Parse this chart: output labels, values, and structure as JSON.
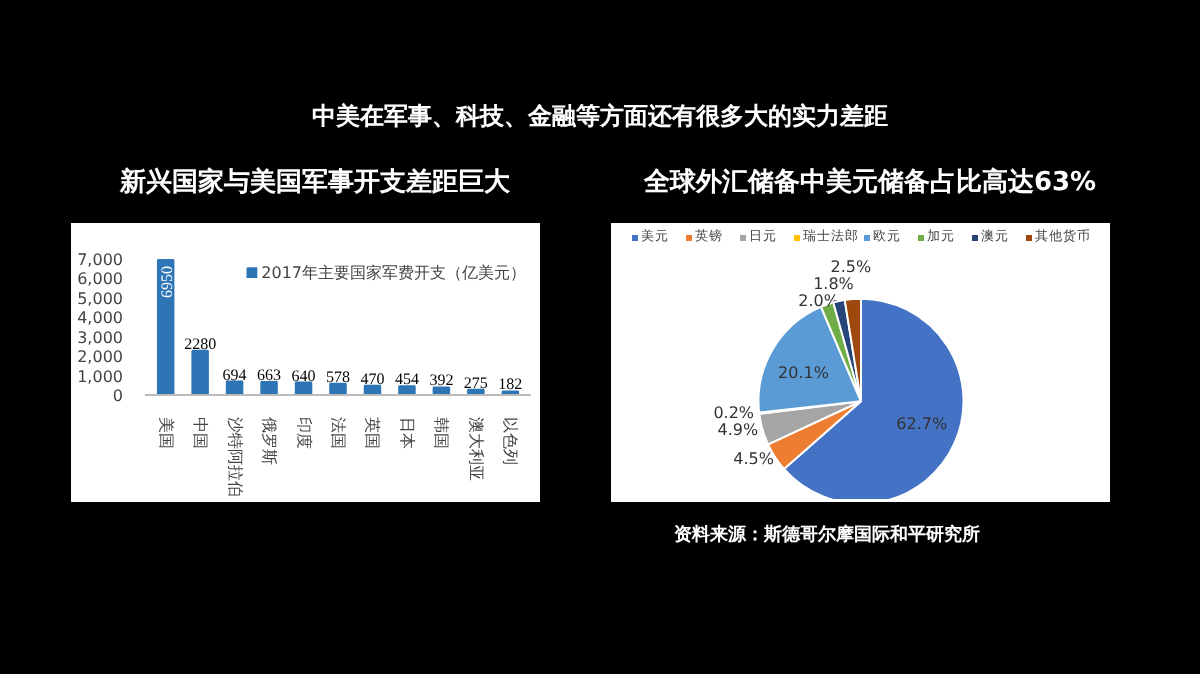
{
  "chart_data": [
    {
      "type": "bar",
      "title": "新兴国家与美国军事开支差距巨大",
      "annotations": [
        "中美在军事、科技、金融等方面还有很多大的实力差距"
      ],
      "categories": [
        "美国",
        "中国",
        "沙特阿拉伯",
        "俄罗斯",
        "印度",
        "法国",
        "英国",
        "日本",
        "韩国",
        "澳大利亚",
        "以色列"
      ],
      "series": [
        {
          "name": "2017年主要国家军费开支（亿美元）",
          "color": "#2e75b6",
          "values": [
            6950,
            2280,
            694,
            663,
            640,
            578,
            470,
            454,
            392,
            275,
            182
          ]
        }
      ],
      "ylim": [
        0,
        7000
      ],
      "yticks": [
        0,
        {
          "value": 1000,
          "label": "1,000"
        },
        {
          "value": 2000,
          "label": "2,000"
        },
        {
          "value": 3000,
          "label": "3,000"
        },
        {
          "value": 4000,
          "label": "4,000"
        },
        {
          "value": 5000,
          "label": "5,000"
        },
        {
          "value": 6000,
          "label": "6,000"
        },
        {
          "value": 7000,
          "label": "7,000"
        }
      ],
      "data_labels": true,
      "legend": "top right"
    },
    {
      "type": "pie",
      "title": "全球外汇储备中美元储备占比高达63%",
      "annotations": [
        "资料来源：斯德哥尔摩国际和平研究所"
      ],
      "categories": [
        "美元",
        "英镑",
        "日元",
        "瑞士法郎",
        "欧元",
        "加元",
        "澳元",
        "其他货币"
      ],
      "values": [
        62.7,
        4.5,
        4.9,
        0.2,
        20.1,
        2.0,
        1.8,
        2.5
      ],
      "colors": [
        "#4472c4",
        "#ed7d31",
        "#a5a5a5",
        "#ffc000",
        "#5b9bd5",
        "#70ad47",
        "#264478",
        "#9e480e"
      ],
      "value_labels": [
        "62.7%",
        "4.5%",
        "4.9%",
        "0.2%",
        "20.1%",
        "2.0%",
        "1.8%",
        "2.5%"
      ],
      "legend": "top"
    }
  ]
}
